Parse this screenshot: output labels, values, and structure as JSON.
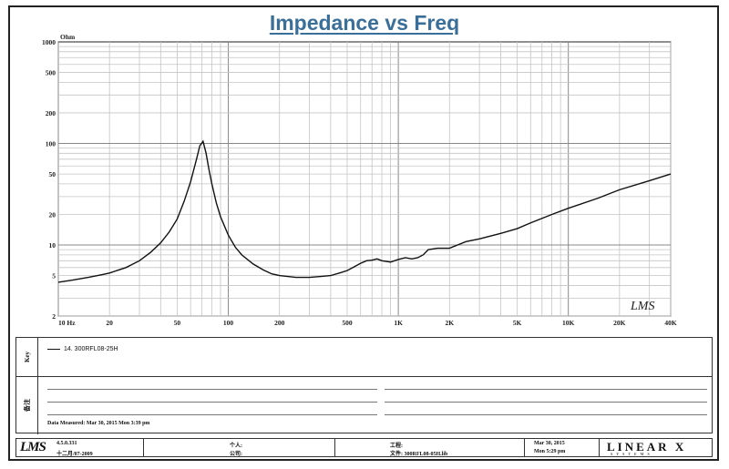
{
  "chart_data": {
    "type": "line",
    "title": "Impedance vs Freq",
    "ylabel": "Ohm",
    "x_scale": "log",
    "y_scale": "log",
    "xlim": [
      10,
      40000
    ],
    "ylim": [
      2,
      1000
    ],
    "grid": true,
    "x_ticks": [
      {
        "value": 10,
        "label": "10 Hz"
      },
      {
        "value": 20,
        "label": "20"
      },
      {
        "value": 50,
        "label": "50"
      },
      {
        "value": 100,
        "label": "100"
      },
      {
        "value": 200,
        "label": "200"
      },
      {
        "value": 500,
        "label": "500"
      },
      {
        "value": 1000,
        "label": "1K"
      },
      {
        "value": 2000,
        "label": "2K"
      },
      {
        "value": 5000,
        "label": "5K"
      },
      {
        "value": 10000,
        "label": "10K"
      },
      {
        "value": 20000,
        "label": "20K"
      },
      {
        "value": 40000,
        "label": "40K"
      }
    ],
    "y_ticks": [
      {
        "value": 1000,
        "label": "1000"
      },
      {
        "value": 500,
        "label": "500"
      },
      {
        "value": 200,
        "label": "200"
      },
      {
        "value": 100,
        "label": "100"
      },
      {
        "value": 50,
        "label": "50"
      },
      {
        "value": 20,
        "label": "20"
      },
      {
        "value": 10,
        "label": "10"
      },
      {
        "value": 5,
        "label": "5"
      },
      {
        "value": 2,
        "label": "2"
      }
    ],
    "series": [
      {
        "name": "14. 300RFL08-25H",
        "x": [
          10,
          12,
          15,
          18,
          20,
          25,
          30,
          35,
          40,
          45,
          50,
          55,
          60,
          65,
          68,
          71,
          74,
          77,
          80,
          85,
          90,
          100,
          110,
          120,
          140,
          160,
          180,
          200,
          250,
          300,
          350,
          400,
          450,
          500,
          550,
          600,
          650,
          700,
          750,
          800,
          900,
          1000,
          1100,
          1200,
          1300,
          1400,
          1500,
          1700,
          2000,
          2500,
          3000,
          4000,
          5000,
          6000,
          8000,
          10000,
          15000,
          20000,
          30000,
          40000
        ],
        "y": [
          4.3,
          4.5,
          4.8,
          5.1,
          5.3,
          6.0,
          7.0,
          8.5,
          10.5,
          13.5,
          18,
          27,
          42,
          70,
          95,
          105,
          80,
          55,
          40,
          26,
          19,
          12.5,
          9.5,
          8.0,
          6.5,
          5.7,
          5.2,
          5.0,
          4.8,
          4.8,
          4.9,
          5.0,
          5.3,
          5.6,
          6.1,
          6.6,
          7.0,
          7.1,
          7.3,
          7.0,
          6.8,
          7.2,
          7.5,
          7.3,
          7.5,
          8.0,
          9.0,
          9.3,
          9.3,
          10.8,
          11.5,
          13.0,
          14.5,
          16.5,
          20.0,
          23.0,
          29.0,
          35.0,
          43.0,
          50.0
        ]
      }
    ]
  },
  "plot_logo": "LMS",
  "legend": {
    "side_label": "Key",
    "entry": "14. 300RFL08-25H"
  },
  "notes": {
    "side_label": "备注",
    "date_measured": "Data Measured: Mar 30, 2015 Mon 3:39 pm"
  },
  "footer": {
    "logo": "LMS",
    "version": "4.5.0.331",
    "version_date": "十二月/07-2009",
    "person_label": "个人:",
    "company_label": "公司:",
    "project_label": "工程:",
    "file_label": "文件: 300RFL08-05H.lib",
    "date": "Mar 30, 2015",
    "time": "Mon 5:29 pm",
    "brand": "LINEAR X",
    "brand_sub": "SYSTEMS"
  }
}
